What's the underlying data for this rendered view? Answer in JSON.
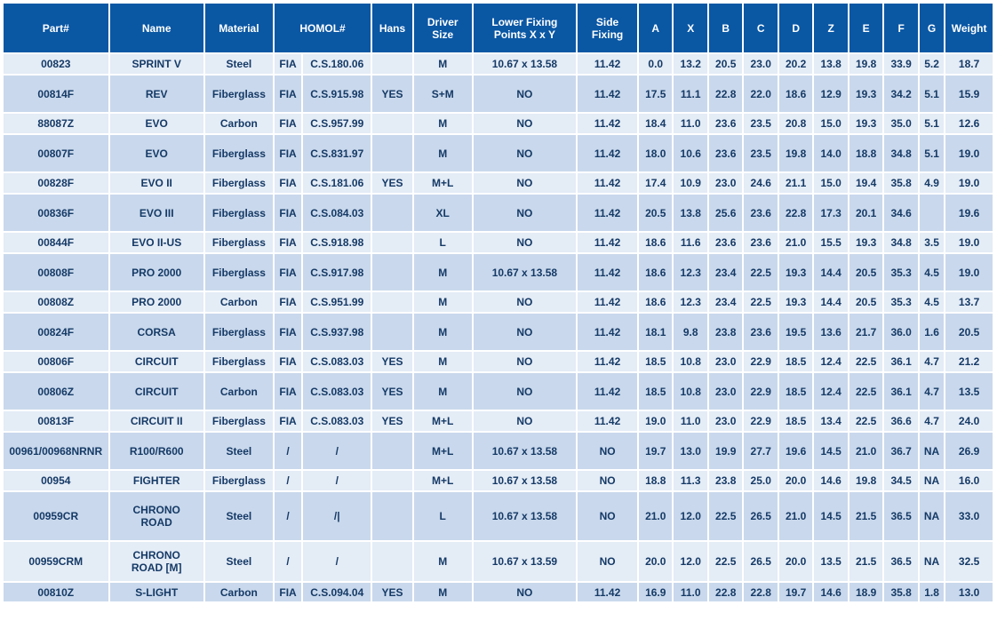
{
  "headers": {
    "part": "Part#",
    "name": "Name",
    "material": "Material",
    "homol": "HOMOL#",
    "hans": "Hans",
    "driver_size": "Driver\nSize",
    "lower_fixing": "Lower Fixing\nPoints X x Y",
    "side_fixing": "Side\nFixing",
    "a": "A",
    "x": "X",
    "b": "B",
    "c": "C",
    "d": "D",
    "z": "Z",
    "e": "E",
    "f": "F",
    "g": "G",
    "weight": "Weight"
  },
  "rows": [
    {
      "part": "00823",
      "name": "SPRINT V",
      "material": "Steel",
      "homol_body": "FIA",
      "homol_num": "C.S.180.06",
      "hans": "",
      "size": "M",
      "lower": "10.67 x 13.58",
      "side": "11.42",
      "a": "0.0",
      "x": "13.2",
      "b": "20.5",
      "c": "23.0",
      "d": "20.2",
      "z": "13.8",
      "e": "19.8",
      "f": "33.9",
      "g": "5.2",
      "weight": "18.7"
    },
    {
      "part": "00814F",
      "name": "REV",
      "material": "Fiberglass",
      "homol_body": "FIA",
      "homol_num": "C.S.915.98",
      "hans": "YES",
      "size": "S+M",
      "lower": "NO",
      "side": "11.42",
      "a": "17.5",
      "x": "11.1",
      "b": "22.8",
      "c": "22.0",
      "d": "18.6",
      "z": "12.9",
      "e": "19.3",
      "f": "34.2",
      "g": "5.1",
      "weight": "15.9"
    },
    {
      "part": "88087Z",
      "name": "EVO",
      "material": "Carbon",
      "homol_body": "FIA",
      "homol_num": "C.S.957.99",
      "hans": "",
      "size": "M",
      "lower": "NO",
      "side": "11.42",
      "a": "18.4",
      "x": "11.0",
      "b": "23.6",
      "c": "23.5",
      "d": "20.8",
      "z": "15.0",
      "e": "19.3",
      "f": "35.0",
      "g": "5.1",
      "weight": "12.6"
    },
    {
      "part": "00807F",
      "name": "EVO",
      "material": "Fiberglass",
      "homol_body": "FIA",
      "homol_num": "C.S.831.97",
      "hans": "",
      "size": "M",
      "lower": "NO",
      "side": "11.42",
      "a": "18.0",
      "x": "10.6",
      "b": "23.6",
      "c": "23.5",
      "d": "19.8",
      "z": "14.0",
      "e": "18.8",
      "f": "34.8",
      "g": "5.1",
      "weight": "19.0"
    },
    {
      "part": "00828F",
      "name": "EVO II",
      "material": "Fiberglass",
      "homol_body": "FIA",
      "homol_num": "C.S.181.06",
      "hans": "YES",
      "size": "M+L",
      "lower": "NO",
      "side": "11.42",
      "a": "17.4",
      "x": "10.9",
      "b": "23.0",
      "c": "24.6",
      "d": "21.1",
      "z": "15.0",
      "e": "19.4",
      "f": "35.8",
      "g": "4.9",
      "weight": "19.0"
    },
    {
      "part": "00836F",
      "name": "EVO III",
      "material": "Fiberglass",
      "homol_body": "FIA",
      "homol_num": "C.S.084.03",
      "hans": "",
      "size": "XL",
      "lower": "NO",
      "side": "11.42",
      "a": "20.5",
      "x": "13.8",
      "b": "25.6",
      "c": "23.6",
      "d": "22.8",
      "z": "17.3",
      "e": "20.1",
      "f": "34.6",
      "g": "",
      "weight": "19.6"
    },
    {
      "part": "00844F",
      "name": "EVO II-US",
      "material": "Fiberglass",
      "homol_body": "FIA",
      "homol_num": "C.S.918.98",
      "hans": "",
      "size": "L",
      "lower": "NO",
      "side": "11.42",
      "a": "18.6",
      "x": "11.6",
      "b": "23.6",
      "c": "23.6",
      "d": "21.0",
      "z": "15.5",
      "e": "19.3",
      "f": "34.8",
      "g": "3.5",
      "weight": "19.0"
    },
    {
      "part": "00808F",
      "name": "PRO 2000",
      "material": "Fiberglass",
      "homol_body": "FIA",
      "homol_num": "C.S.917.98",
      "hans": "",
      "size": "M",
      "lower": "10.67 x 13.58",
      "side": "11.42",
      "a": "18.6",
      "x": "12.3",
      "b": "23.4",
      "c": "22.5",
      "d": "19.3",
      "z": "14.4",
      "e": "20.5",
      "f": "35.3",
      "g": "4.5",
      "weight": "19.0"
    },
    {
      "part": "00808Z",
      "name": "PRO 2000",
      "material": "Carbon",
      "homol_body": "FIA",
      "homol_num": "C.S.951.99",
      "hans": "",
      "size": "M",
      "lower": "NO",
      "side": "11.42",
      "a": "18.6",
      "x": "12.3",
      "b": "23.4",
      "c": "22.5",
      "d": "19.3",
      "z": "14.4",
      "e": "20.5",
      "f": "35.3",
      "g": "4.5",
      "weight": "13.7"
    },
    {
      "part": "00824F",
      "name": "CORSA",
      "material": "Fiberglass",
      "homol_body": "FIA",
      "homol_num": "C.S.937.98",
      "hans": "",
      "size": "M",
      "lower": "NO",
      "side": "11.42",
      "a": "18.1",
      "x": "9.8",
      "b": "23.8",
      "c": "23.6",
      "d": "19.5",
      "z": "13.6",
      "e": "21.7",
      "f": "36.0",
      "g": "1.6",
      "weight": "20.5"
    },
    {
      "part": "00806F",
      "name": "CIRCUIT",
      "material": "Fiberglass",
      "homol_body": "FIA",
      "homol_num": "C.S.083.03",
      "hans": "YES",
      "size": "M",
      "lower": "NO",
      "side": "11.42",
      "a": "18.5",
      "x": "10.8",
      "b": "23.0",
      "c": "22.9",
      "d": "18.5",
      "z": "12.4",
      "e": "22.5",
      "f": "36.1",
      "g": "4.7",
      "weight": "21.2"
    },
    {
      "part": "00806Z",
      "name": "CIRCUIT",
      "material": "Carbon",
      "homol_body": "FIA",
      "homol_num": "C.S.083.03",
      "hans": "YES",
      "size": "M",
      "lower": "NO",
      "side": "11.42",
      "a": "18.5",
      "x": "10.8",
      "b": "23.0",
      "c": "22.9",
      "d": "18.5",
      "z": "12.4",
      "e": "22.5",
      "f": "36.1",
      "g": "4.7",
      "weight": "13.5"
    },
    {
      "part": "00813F",
      "name": "CIRCUIT II",
      "material": "Fiberglass",
      "homol_body": "FIA",
      "homol_num": "C.S.083.03",
      "hans": "YES",
      "size": "M+L",
      "lower": "NO",
      "side": "11.42",
      "a": "19.0",
      "x": "11.0",
      "b": "23.0",
      "c": "22.9",
      "d": "18.5",
      "z": "13.4",
      "e": "22.5",
      "f": "36.6",
      "g": "4.7",
      "weight": "24.0"
    },
    {
      "part": "00961/00968NRNR",
      "name": "R100/R600",
      "material": "Steel",
      "homol_body": "/",
      "homol_num": "/",
      "hans": "",
      "size": "M+L",
      "lower": "10.67 x 13.58",
      "side": "NO",
      "a": "19.7",
      "x": "13.0",
      "b": "19.9",
      "c": "27.7",
      "d": "19.6",
      "z": "14.5",
      "e": "21.0",
      "f": "36.7",
      "g": "NA",
      "weight": "26.9"
    },
    {
      "part": "00954",
      "name": "FIGHTER",
      "material": "Fiberglass",
      "homol_body": "/",
      "homol_num": "/",
      "hans": "",
      "size": "M+L",
      "lower": "10.67 x 13.58",
      "side": "NO",
      "a": "18.8",
      "x": "11.3",
      "b": "23.8",
      "c": "25.0",
      "d": "20.0",
      "z": "14.6",
      "e": "19.8",
      "f": "34.5",
      "g": "NA",
      "weight": "16.0"
    },
    {
      "part": "00959CR",
      "name": "CHRONO\nROAD",
      "material": "Steel",
      "homol_body": "/",
      "homol_num": "/|",
      "hans": "",
      "size": "L",
      "lower": "10.67 x 13.58",
      "side": "NO",
      "a": "21.0",
      "x": "12.0",
      "b": "22.5",
      "c": "26.5",
      "d": "21.0",
      "z": "14.5",
      "e": "21.5",
      "f": "36.5",
      "g": "NA",
      "weight": "33.0"
    },
    {
      "part": "00959CRM",
      "name": "CHRONO\nROAD [M]",
      "material": "Steel",
      "homol_body": "/",
      "homol_num": "/",
      "hans": "",
      "size": "M",
      "lower": "10.67 x 13.59",
      "side": "NO",
      "a": "20.0",
      "x": "12.0",
      "b": "22.5",
      "c": "26.5",
      "d": "20.0",
      "z": "13.5",
      "e": "21.5",
      "f": "36.5",
      "g": "NA",
      "weight": "32.5"
    },
    {
      "part": "00810Z",
      "name": "S-LIGHT",
      "material": "Carbon",
      "homol_body": "FIA",
      "homol_num": "C.S.094.04",
      "hans": "YES",
      "size": "M",
      "lower": "NO",
      "side": "11.42",
      "a": "16.9",
      "x": "11.0",
      "b": "22.8",
      "c": "22.8",
      "d": "19.7",
      "z": "14.6",
      "e": "18.9",
      "f": "35.8",
      "g": "1.8",
      "weight": "13.0"
    }
  ],
  "colors": {
    "header_bg": "#0a57a4",
    "header_text": "#ffffff",
    "row_light": "#e4ecf6",
    "row_dark": "#c9d8ec",
    "cell_text": "#153a66"
  }
}
